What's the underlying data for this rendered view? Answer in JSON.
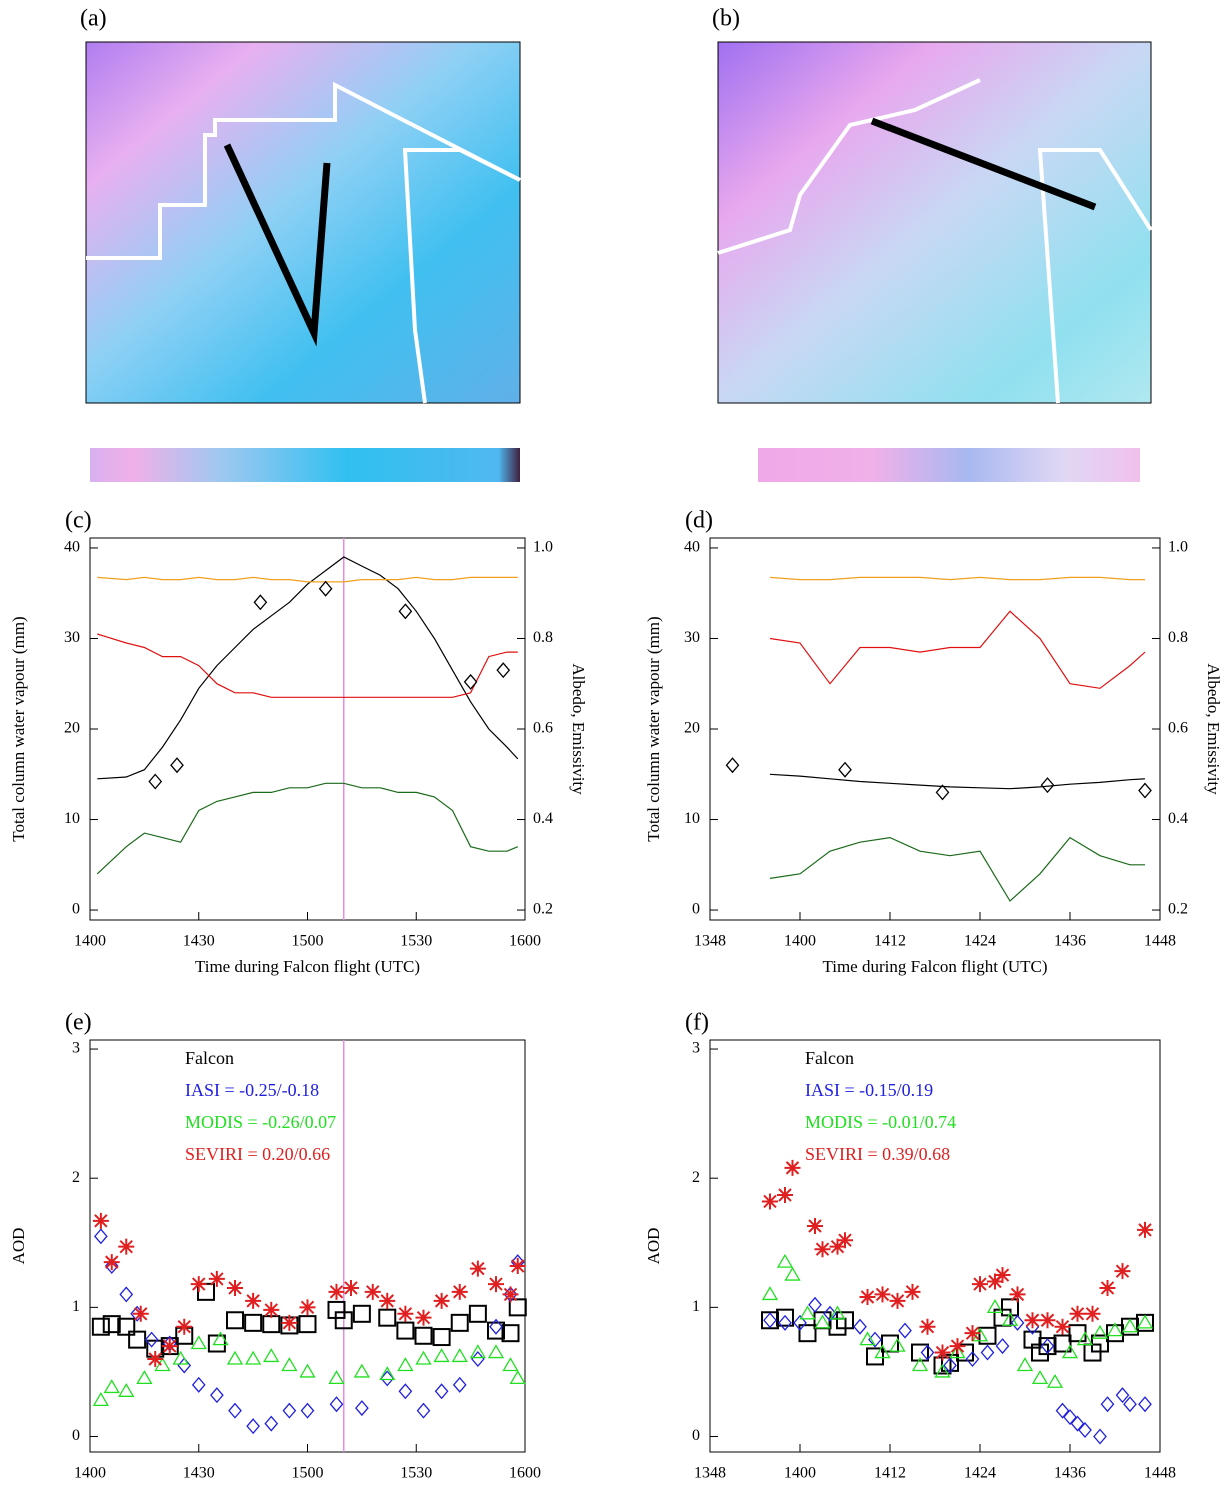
{
  "images": [
    {
      "label": "(a)"
    },
    {
      "label": "(b)"
    }
  ],
  "chart_data": [
    {
      "type": "line",
      "label": "(c)",
      "xlabel": "Time during Falcon flight (UTC)",
      "ylabel": "Total column water vapour (mm)",
      "y2label": "Albedo, Emissivity",
      "xlim": [
        1400,
        1600
      ],
      "xticks": [
        1400,
        1430,
        1500,
        1530,
        1600
      ],
      "ylim": [
        -1.1,
        41.1
      ],
      "yticks": [
        0,
        10,
        20,
        30,
        40
      ],
      "y2lim": [
        0.178,
        1.022
      ],
      "y2ticks": [
        0.2,
        0.4,
        0.6,
        0.8,
        {
          "value": 1,
          "label": "1.0"
        }
      ],
      "vline": 1510,
      "vline_color": "#e58de5",
      "x": [
        1402,
        1410,
        1415,
        1420,
        1425,
        1430,
        1435,
        1440,
        1445,
        1450,
        1455,
        1500,
        1505,
        1510,
        1515,
        1520,
        1525,
        1530,
        1535,
        1540,
        1545,
        1550,
        1555,
        1558
      ],
      "series": [
        {
          "color": "#000000",
          "values": [
            14.5,
            14.7,
            15.5,
            18,
            21,
            24.5,
            27,
            29,
            31,
            32.5,
            34,
            36,
            37.5,
            39,
            38,
            37,
            35.5,
            33,
            30,
            26.5,
            23,
            20,
            18,
            16.7
          ]
        },
        {
          "color": "#f0a020",
          "axis": "y2",
          "values": [
            0.935,
            0.93,
            0.935,
            0.93,
            0.93,
            0.935,
            0.93,
            0.93,
            0.935,
            0.93,
            0.93,
            0.925,
            0.925,
            0.925,
            0.93,
            0.93,
            0.93,
            0.935,
            0.93,
            0.93,
            0.935,
            0.935,
            0.935,
            0.935
          ]
        },
        {
          "color": "#e01010",
          "axis": "y2",
          "values": [
            0.81,
            0.79,
            0.78,
            0.76,
            0.76,
            0.74,
            0.7,
            0.68,
            0.68,
            0.67,
            0.67,
            0.67,
            0.67,
            0.67,
            0.67,
            0.67,
            0.67,
            0.67,
            0.67,
            0.67,
            0.68,
            0.76,
            0.77,
            0.77
          ]
        },
        {
          "color": "#1a6a1a",
          "axis": "y2",
          "values": [
            0.28,
            0.34,
            0.37,
            0.36,
            0.35,
            0.42,
            0.44,
            0.45,
            0.46,
            0.46,
            0.47,
            0.47,
            0.48,
            0.48,
            0.47,
            0.47,
            0.46,
            0.46,
            0.45,
            0.42,
            0.34,
            0.33,
            0.33,
            0.34
          ]
        },
        {
          "color": "#000000",
          "marker": "diamond",
          "x": [
            1418,
            1424,
            1447,
            1505,
            1527,
            1545,
            1554
          ],
          "values": [
            14.2,
            16,
            34,
            35.5,
            33,
            25.2,
            26.5
          ]
        }
      ]
    },
    {
      "type": "line",
      "label": "(d)",
      "xlabel": "Time during Falcon flight (UTC)",
      "ylabel": "Total column water vapour (mm)",
      "y2label": "Albedo, Emissivity",
      "xlim": [
        1348,
        1448
      ],
      "xticks": [
        1348,
        1400,
        1412,
        1424,
        1436,
        1448
      ],
      "ylim": [
        -1.1,
        41.1
      ],
      "yticks": [
        0,
        10,
        20,
        30,
        40
      ],
      "y2lim": [
        0.178,
        1.022
      ],
      "y2ticks": [
        0.2,
        0.4,
        0.6,
        0.8,
        {
          "value": 1,
          "label": "1.0"
        }
      ],
      "x": [
        1356,
        1400,
        1404,
        1408,
        1412,
        1416,
        1420,
        1424,
        1428,
        1432,
        1436,
        1440,
        1444,
        1446
      ],
      "series": [
        {
          "color": "#000000",
          "values": [
            15,
            14.8,
            14.5,
            14.2,
            14,
            13.8,
            13.6,
            13.5,
            13.4,
            13.6,
            13.9,
            14.1,
            14.4,
            14.5
          ]
        },
        {
          "color": "#f0a020",
          "axis": "y2",
          "values": [
            0.935,
            0.93,
            0.93,
            0.935,
            0.935,
            0.935,
            0.93,
            0.935,
            0.93,
            0.93,
            0.935,
            0.935,
            0.93,
            0.93
          ]
        },
        {
          "color": "#e01010",
          "axis": "y2",
          "values": [
            0.8,
            0.79,
            0.7,
            0.78,
            0.78,
            0.77,
            0.78,
            0.78,
            0.86,
            0.8,
            0.7,
            0.69,
            0.74,
            0.77
          ]
        },
        {
          "color": "#1a6a1a",
          "axis": "y2",
          "values": [
            0.27,
            0.28,
            0.33,
            0.35,
            0.36,
            0.33,
            0.32,
            0.33,
            0.22,
            0.28,
            0.36,
            0.32,
            0.3,
            0.3
          ]
        },
        {
          "color": "#000000",
          "marker": "diamond",
          "x": [
            1351,
            1406,
            1419,
            1433,
            1446
          ],
          "values": [
            16,
            15.5,
            13,
            13.8,
            13.2
          ]
        }
      ]
    },
    {
      "type": "scatter",
      "label": "(e)",
      "xlabel": "Time during Falcon flight (UTC)",
      "ylabel": "AOD",
      "legend": "upper left",
      "xlim": [
        1400,
        1600
      ],
      "xticks": [
        1400,
        1430,
        1500,
        1530,
        1600
      ],
      "ylim": [
        -0.12,
        3.07
      ],
      "yticks": [
        0,
        1,
        2,
        3
      ],
      "vline": 1510,
      "vline_color": "#e58de5",
      "series": [
        {
          "name": "Falcon",
          "color": "#000000",
          "marker": "square",
          "x": [
            1403,
            1406,
            1410,
            1413,
            1418,
            1422,
            1426,
            1432,
            1435,
            1440,
            1445,
            1450,
            1455,
            1500,
            1508,
            1510,
            1515,
            1522,
            1527,
            1532,
            1537,
            1542,
            1547,
            1552,
            1556,
            1558
          ],
          "values": [
            0.85,
            0.87,
            0.85,
            0.75,
            0.68,
            0.7,
            0.78,
            1.12,
            0.72,
            0.9,
            0.88,
            0.87,
            0.86,
            0.87,
            0.98,
            0.9,
            0.95,
            0.92,
            0.82,
            0.78,
            0.77,
            0.88,
            0.95,
            0.82,
            0.8,
            1.0
          ]
        },
        {
          "name": "IASI = -0.25/-0.18",
          "color": "#2020e0",
          "marker": "diamond",
          "x": [
            1403,
            1406,
            1410,
            1413,
            1417,
            1422,
            1426,
            1430,
            1435,
            1440,
            1445,
            1450,
            1455,
            1500,
            1508,
            1515,
            1522,
            1527,
            1532,
            1537,
            1542,
            1547,
            1552,
            1556,
            1558
          ],
          "values": [
            1.55,
            1.32,
            1.1,
            0.95,
            0.75,
            0.72,
            0.55,
            0.4,
            0.32,
            0.2,
            0.08,
            0.1,
            0.2,
            0.2,
            0.25,
            0.22,
            0.45,
            0.35,
            0.2,
            0.35,
            0.4,
            0.6,
            0.85,
            1.1,
            1.35
          ]
        },
        {
          "name": "MODIS = -0.26/0.07",
          "color": "#20e020",
          "marker": "triangle",
          "x": [
            1403,
            1406,
            1410,
            1415,
            1420,
            1425,
            1430,
            1436,
            1440,
            1445,
            1450,
            1455,
            1500,
            1508,
            1515,
            1522,
            1527,
            1532,
            1537,
            1542,
            1547,
            1552,
            1556,
            1558
          ],
          "values": [
            0.28,
            0.38,
            0.35,
            0.45,
            0.55,
            0.6,
            0.72,
            0.75,
            0.6,
            0.6,
            0.62,
            0.55,
            0.5,
            0.45,
            0.5,
            0.48,
            0.55,
            0.6,
            0.62,
            0.62,
            0.65,
            0.65,
            0.55,
            0.45
          ]
        },
        {
          "name": "SEVIRI = 0.20/0.66",
          "color": "#e02020",
          "marker": "asterisk",
          "x": [
            1403,
            1406,
            1410,
            1414,
            1418,
            1422,
            1426,
            1430,
            1435,
            1440,
            1445,
            1450,
            1455,
            1500,
            1508,
            1512,
            1518,
            1522,
            1527,
            1532,
            1537,
            1542,
            1547,
            1552,
            1556,
            1558
          ],
          "values": [
            1.67,
            1.35,
            1.47,
            0.95,
            0.6,
            0.7,
            0.85,
            1.18,
            1.22,
            1.15,
            1.05,
            0.98,
            0.88,
            1.0,
            1.12,
            1.15,
            1.12,
            1.05,
            0.95,
            0.92,
            1.05,
            1.12,
            1.3,
            1.18,
            1.1,
            1.32
          ]
        }
      ]
    },
    {
      "type": "scatter",
      "label": "(f)",
      "xlabel": "Time during Falcon flight (UTC)",
      "ylabel": "AOD",
      "legend": "upper left",
      "xlim": [
        1348,
        1448
      ],
      "xticks": [
        1348,
        1400,
        1412,
        1424,
        1436,
        1448
      ],
      "ylim": [
        -0.12,
        3.07
      ],
      "yticks": [
        0,
        1,
        2,
        3
      ],
      "series": [
        {
          "name": "Falcon",
          "color": "#000000",
          "marker": "square",
          "x": [
            1356,
            1358,
            1401,
            1403,
            1405,
            1406,
            1410,
            1412,
            1416,
            1419,
            1420,
            1422,
            1425,
            1427,
            1428,
            1431,
            1432,
            1433,
            1435,
            1437,
            1439,
            1440,
            1442,
            1444,
            1446
          ],
          "values": [
            0.9,
            0.92,
            0.8,
            0.9,
            0.85,
            0.9,
            0.62,
            0.72,
            0.65,
            0.55,
            0.57,
            0.65,
            0.78,
            0.92,
            1.0,
            0.75,
            0.65,
            0.7,
            0.72,
            0.8,
            0.65,
            0.72,
            0.8,
            0.85,
            0.88
          ]
        },
        {
          "name": "IASI = -0.15/0.19",
          "color": "#2020e0",
          "marker": "diamond",
          "x": [
            1356,
            1358,
            1400,
            1402,
            1404,
            1408,
            1410,
            1414,
            1417,
            1420,
            1423,
            1425,
            1427,
            1429,
            1431,
            1433,
            1435,
            1436,
            1437,
            1438,
            1440,
            1441,
            1443,
            1444,
            1446
          ],
          "values": [
            0.9,
            0.88,
            0.88,
            1.02,
            0.95,
            0.85,
            0.75,
            0.82,
            0.65,
            0.55,
            0.6,
            0.65,
            0.7,
            0.88,
            0.85,
            0.7,
            0.2,
            0.15,
            0.1,
            0.05,
            0.0,
            0.25,
            0.32,
            0.25,
            0.25
          ]
        },
        {
          "name": "MODIS = -0.01/0.74",
          "color": "#20e020",
          "marker": "triangle",
          "x": [
            1356,
            1358,
            1359,
            1401,
            1403,
            1405,
            1409,
            1411,
            1413,
            1416,
            1419,
            1421,
            1424,
            1426,
            1428,
            1430,
            1432,
            1434,
            1436,
            1438,
            1440,
            1442,
            1444,
            1446
          ],
          "values": [
            1.1,
            1.35,
            1.25,
            0.95,
            0.88,
            0.95,
            0.75,
            0.65,
            0.7,
            0.55,
            0.5,
            0.65,
            0.78,
            1.0,
            0.9,
            0.55,
            0.45,
            0.42,
            0.65,
            0.75,
            0.8,
            0.82,
            0.85,
            0.88
          ]
        },
        {
          "name": "SEVIRI = 0.39/0.68",
          "color": "#e02020",
          "marker": "asterisk",
          "x": [
            1356,
            1358,
            1359,
            1402,
            1403,
            1405,
            1406,
            1409,
            1411,
            1413,
            1415,
            1417,
            1419,
            1421,
            1423,
            1424,
            1426,
            1427,
            1429,
            1431,
            1433,
            1435,
            1437,
            1439,
            1441,
            1443,
            1446
          ],
          "values": [
            1.82,
            1.87,
            2.08,
            1.63,
            1.45,
            1.47,
            1.52,
            1.08,
            1.1,
            1.05,
            1.12,
            0.85,
            0.65,
            0.7,
            0.8,
            1.18,
            1.2,
            1.25,
            1.1,
            0.9,
            0.9,
            0.85,
            0.95,
            0.95,
            1.15,
            1.28,
            1.6
          ]
        }
      ]
    }
  ]
}
